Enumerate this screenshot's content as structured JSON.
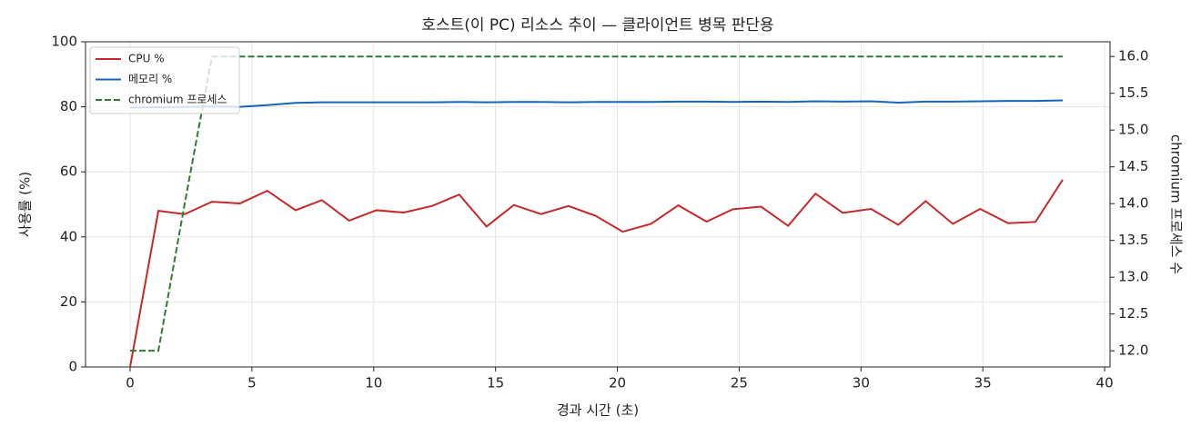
{
  "chart_data": {
    "type": "line",
    "title": "호스트(이 PC) 리소스 추이 — 클라이언트 병목 판단용",
    "x_label": "경과 시간 (초)",
    "y_label": "사용률 (%)",
    "y2_label": "chromium 프로세스 수",
    "x": [
      0,
      1.16,
      2.24,
      3.36,
      4.51,
      5.63,
      6.79,
      7.87,
      8.99,
      10.11,
      11.23,
      12.39,
      13.51,
      14.63,
      15.75,
      16.87,
      17.99,
      19.1,
      20.22,
      21.38,
      22.5,
      23.66,
      24.74,
      25.9,
      27.01,
      28.13,
      29.25,
      30.41,
      31.53,
      32.65,
      33.77,
      34.89,
      36.04,
      37.16,
      38.28
    ],
    "series": [
      {
        "name": "CPU %",
        "color": "#c62828",
        "axis": "y",
        "linestyle": "solid",
        "values": [
          0,
          48,
          47,
          50.8,
          50.3,
          54.2,
          48.2,
          51.3,
          45,
          48.2,
          47.5,
          49.5,
          53,
          43.2,
          49.8,
          47,
          49.5,
          46.5,
          41.6,
          44,
          49.7,
          44.7,
          48.5,
          49.3,
          43.4,
          53.3,
          47.4,
          48.6,
          43.7,
          51,
          44,
          48.6,
          44.2,
          44.6,
          57.6
        ]
      },
      {
        "name": "메모리 %",
        "color": "#1565c0",
        "axis": "y",
        "linestyle": "solid",
        "values": [
          79.8,
          79.9,
          80,
          80.1,
          80,
          80.5,
          81.2,
          81.4,
          81.4,
          81.4,
          81.4,
          81.4,
          81.5,
          81.4,
          81.5,
          81.5,
          81.4,
          81.5,
          81.5,
          81.5,
          81.6,
          81.6,
          81.5,
          81.6,
          81.5,
          81.7,
          81.6,
          81.7,
          81.3,
          81.6,
          81.6,
          81.7,
          81.8,
          81.8,
          82
        ]
      },
      {
        "name": "chromium 프로세스",
        "color": "#2e7d32",
        "axis": "y2",
        "linestyle": "dashed",
        "values": [
          12,
          12,
          14,
          16,
          16,
          16,
          16,
          16,
          16,
          16,
          16,
          16,
          16,
          16,
          16,
          16,
          16,
          16,
          16,
          16,
          16,
          16,
          16,
          16,
          16,
          16,
          16,
          16,
          16,
          16,
          16,
          16,
          16,
          16,
          16
        ]
      }
    ],
    "xlim": [
      -1.83,
      40.22
    ],
    "xticks": [
      0,
      5,
      10,
      15,
      20,
      25,
      30,
      35,
      40
    ],
    "ylim": [
      0,
      100
    ],
    "yticks": [
      0,
      20,
      40,
      60,
      80,
      100
    ],
    "y2lim": [
      11.78,
      16.2
    ],
    "y2ticks": [
      {
        "value": 12,
        "label": "12.0"
      },
      12.5,
      {
        "value": 13,
        "label": "13.0"
      },
      13.5,
      {
        "value": 14,
        "label": "14.0"
      },
      14.5,
      {
        "value": 15,
        "label": "15.0"
      },
      15.5,
      {
        "value": 16,
        "label": "16.0"
      }
    ],
    "grid": true,
    "legend": "upper left"
  }
}
